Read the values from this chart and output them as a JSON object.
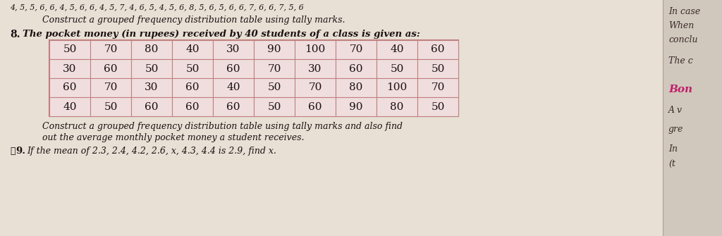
{
  "top_text": "4, 5, 5, 6, 6, 4, 5, 6, 6, 4, 5, 7, 4, 6, 5, 4, 5, 6, 8, 5, 6, 5, 6, 6, 7, 6, 6, 7, 5, 6",
  "construct_text_top": "Construct a grouped frequency distribution table using tally marks.",
  "problem_num": "8.",
  "problem_text": "The pocket money (in rupees) received by 40 students of a class is given as:",
  "table_data": [
    [
      50,
      70,
      80,
      40,
      30,
      90,
      100,
      70,
      40,
      60
    ],
    [
      30,
      60,
      50,
      50,
      60,
      70,
      30,
      60,
      50,
      50
    ],
    [
      60,
      70,
      30,
      60,
      40,
      50,
      70,
      80,
      100,
      70
    ],
    [
      40,
      50,
      60,
      60,
      60,
      50,
      60,
      90,
      80,
      50
    ]
  ],
  "bottom_text1": "Construct a grouped frequency distribution table using tally marks and also find",
  "bottom_text2": "out the average monthly pocket money a student receives.",
  "next_num": "9.",
  "next_checkmark": "✓",
  "next_text": "If the mean of 2.3, 2.4, 4.2, 2.6, x, 4.3, 4.4 is 2.9, find x.",
  "right_texts": [
    "In case",
    "When",
    "conclu",
    "The c",
    "Bon",
    "A v",
    "gre",
    "In",
    "(t"
  ],
  "right_bold": "Bon",
  "bg_color": "#d8cfc4",
  "page_color": "#e8e0d5",
  "right_panel_color": "#d0c8bc",
  "table_cell_color": "#f0dede",
  "table_border_color": "#c08080",
  "text_color": "#1a1010",
  "italic_color": "#2a1a1a",
  "right_normal_color": "#3a2a2a",
  "right_bold_color": "#c0206a"
}
